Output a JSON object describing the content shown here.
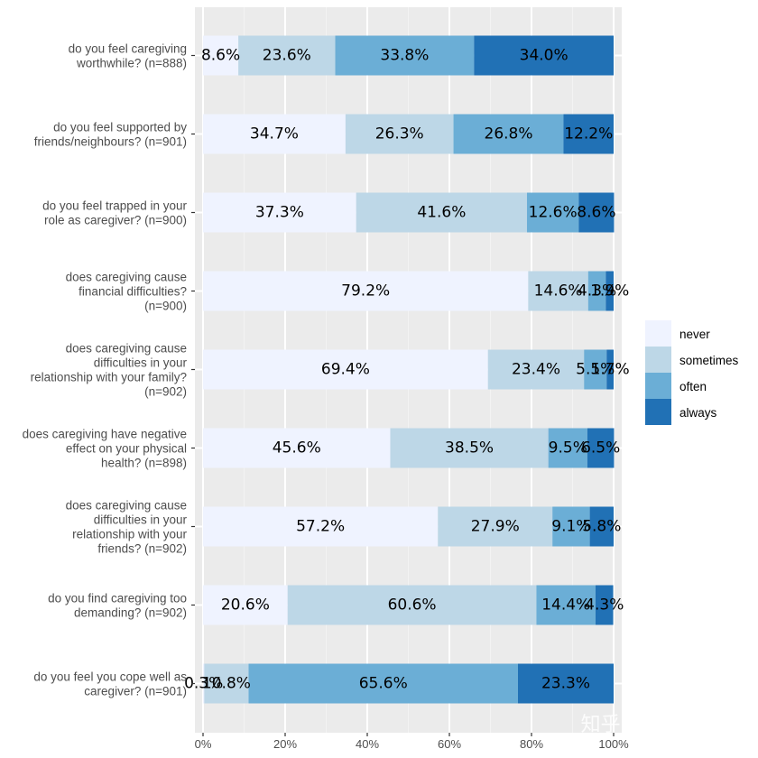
{
  "chart_data": {
    "type": "bar",
    "orientation": "horizontal",
    "stacked": true,
    "percent": true,
    "xlim": [
      0,
      100
    ],
    "x_ticks": [
      "0%",
      "20%",
      "40%",
      "60%",
      "80%",
      "100%"
    ],
    "grid": true,
    "legend_position": "right",
    "categories": [
      {
        "lines": [
          "do you feel caregiving",
          "worthwhile? (n=888)"
        ]
      },
      {
        "lines": [
          "do you feel supported by",
          "friends/neighbours? (n=901)"
        ]
      },
      {
        "lines": [
          "do you feel trapped in your",
          "role as caregiver? (n=900)"
        ]
      },
      {
        "lines": [
          "does caregiving cause",
          "financial difficulties?",
          "(n=900)"
        ]
      },
      {
        "lines": [
          "does caregiving cause",
          "difficulties in your",
          "relationship with your family?",
          "(n=902)"
        ]
      },
      {
        "lines": [
          "does caregiving have negative",
          "effect on your physical",
          "health? (n=898)"
        ]
      },
      {
        "lines": [
          "does caregiving cause",
          "difficulties in your",
          "relationship with your",
          "friends? (n=902)"
        ]
      },
      {
        "lines": [
          "do you find caregiving too",
          "demanding? (n=902)"
        ]
      },
      {
        "lines": [
          "do you feel you cope well as",
          "caregiver? (n=901)"
        ]
      }
    ],
    "series": [
      {
        "name": "never",
        "color": "#eff3ff",
        "values": [
          8.6,
          34.7,
          37.3,
          79.2,
          69.4,
          45.6,
          57.2,
          20.6,
          0.3
        ],
        "labels": [
          "8.6%",
          "34.7%",
          "37.3%",
          "79.2%",
          "69.4%",
          "45.6%",
          "57.2%",
          "20.6%",
          "0.3%"
        ]
      },
      {
        "name": "sometimes",
        "color": "#bdd7e7",
        "values": [
          23.6,
          26.3,
          41.6,
          14.6,
          23.4,
          38.5,
          27.9,
          60.6,
          10.8
        ],
        "labels": [
          "23.6%",
          "26.3%",
          "41.6%",
          "14.6%",
          "23.4%",
          "38.5%",
          "27.9%",
          "60.6%",
          "10.8%"
        ]
      },
      {
        "name": "often",
        "color": "#6baed6",
        "values": [
          33.8,
          26.8,
          12.6,
          4.3,
          5.5,
          9.5,
          9.1,
          14.4,
          65.6
        ],
        "labels": [
          "33.8%",
          "26.8%",
          "12.6%",
          "4.3%",
          "5.5%",
          "9.5%",
          "9.1%",
          "14.4%",
          "65.6%"
        ]
      },
      {
        "name": "always",
        "color": "#2171b5",
        "values": [
          34.0,
          12.2,
          8.6,
          1.9,
          1.7,
          6.5,
          5.8,
          4.3,
          23.3
        ],
        "labels": [
          "34.0%",
          "12.2%",
          "8.6%",
          "1.9%",
          "1.7%",
          "6.5%",
          "5.8%",
          "4.3%",
          "23.3%"
        ]
      }
    ]
  },
  "watermark": "知乎 @timerring",
  "colors": {
    "panel_background": "#ebebeb",
    "grid_major": "#ffffff",
    "grid_minor": "#f3f3f3",
    "axis_text": "#4d4d4d"
  }
}
